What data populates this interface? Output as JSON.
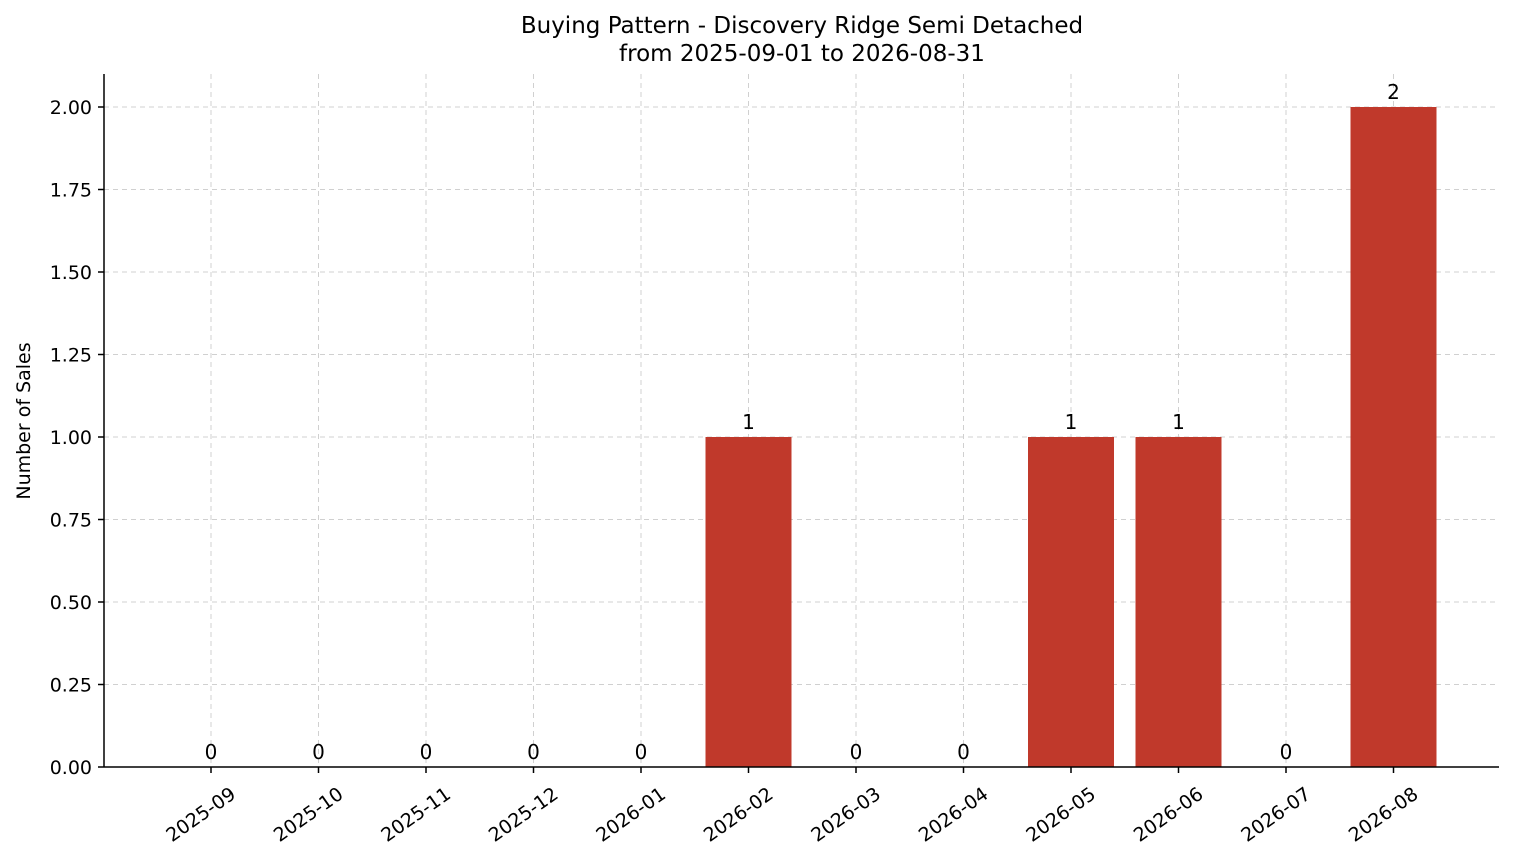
{
  "chart_data": {
    "type": "bar",
    "title": "Buying Pattern - Discovery Ridge Semi Detached",
    "subtitle": "from 2025-09-01 to 2026-08-31",
    "xlabel": "",
    "ylabel": "Number of Sales",
    "categories": [
      "2025-09",
      "2025-10",
      "2025-11",
      "2025-12",
      "2026-01",
      "2026-02",
      "2026-03",
      "2026-04",
      "2026-05",
      "2026-06",
      "2026-07",
      "2026-08"
    ],
    "values": [
      0,
      0,
      0,
      0,
      0,
      1,
      0,
      0,
      1,
      1,
      0,
      2
    ],
    "data_labels": [
      "0",
      "0",
      "0",
      "0",
      "0",
      "1",
      "0",
      "0",
      "1",
      "1",
      "0",
      "2"
    ],
    "ylim": [
      0,
      2.1
    ],
    "yticks": [
      0,
      0.25,
      0.5,
      0.75,
      1.0,
      1.25,
      1.5,
      1.75,
      2.0
    ],
    "ytick_labels": [
      "0.00",
      "0.25",
      "0.50",
      "0.75",
      "1.00",
      "1.25",
      "1.50",
      "1.75",
      "2.00"
    ],
    "grid": true,
    "legend": "none",
    "bar_color": "#c0392b"
  }
}
